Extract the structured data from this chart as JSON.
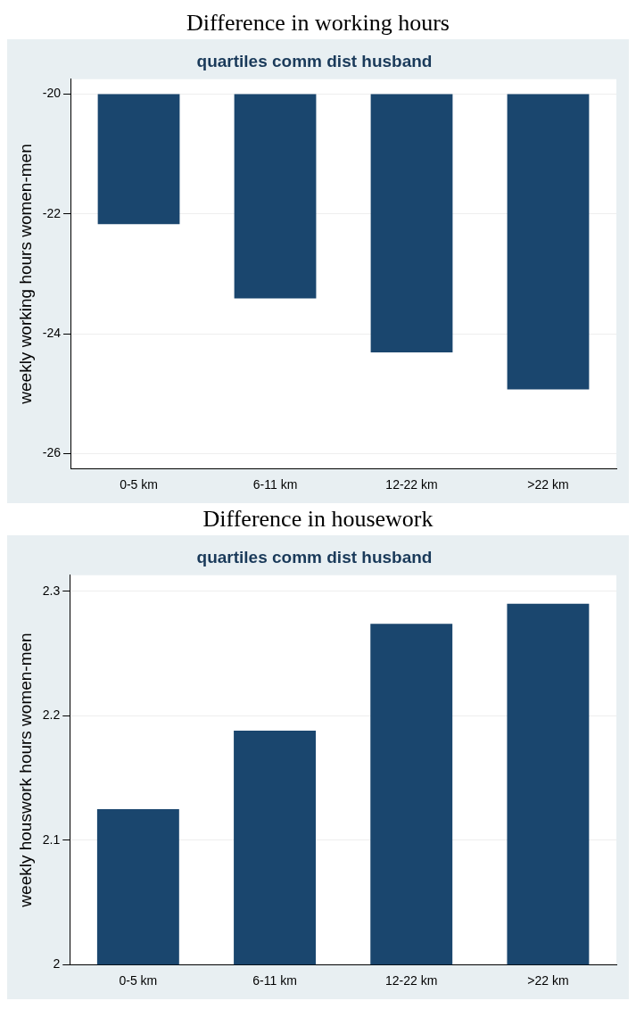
{
  "chart_data": [
    {
      "type": "bar",
      "title": "Difference in working hours",
      "subtitle": "quartiles comm dist husband",
      "ylabel": "weekly working hours women-men",
      "categories": [
        "0-5 km",
        "6-11 km",
        "12-22 km",
        ">22 km"
      ],
      "base": [
        -20,
        -20,
        -20,
        -20
      ],
      "values": [
        -2.17,
        -3.41,
        -4.31,
        -4.93
      ],
      "color": "#1a466e",
      "ylim": [
        -26.25,
        -19.75
      ],
      "yticks": [
        -26,
        -24,
        -22,
        -20
      ],
      "grid": "y"
    },
    {
      "type": "bar",
      "title": "Difference in housework",
      "subtitle": "quartiles comm dist husband",
      "ylabel": "weekly houswork hours women-men",
      "categories": [
        "0-5 km",
        "6-11 km",
        "12-22 km",
        ">22 km"
      ],
      "values": [
        2.125,
        2.188,
        2.274,
        2.29
      ],
      "color": "#1a466e",
      "ylim": [
        2,
        2.313
      ],
      "yticks": [
        2,
        2.1,
        2.2,
        2.3
      ],
      "grid": "y"
    }
  ]
}
